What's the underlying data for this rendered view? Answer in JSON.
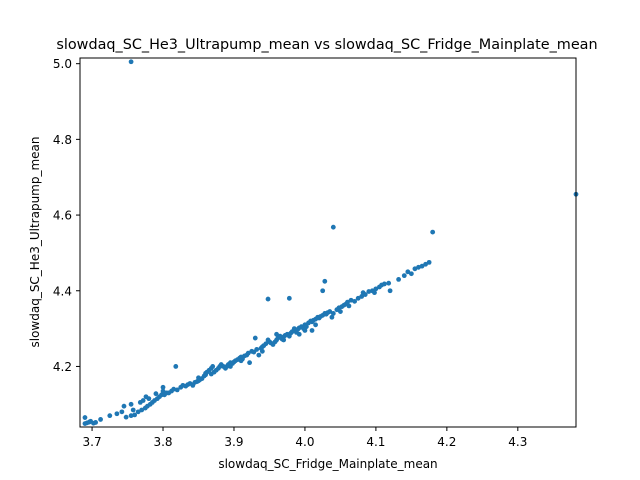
{
  "chart_data": {
    "type": "scatter",
    "title": "slowdaq_SC_He3_Ultrapump_mean vs slowdaq_SC_Fridge_Mainplate_mean",
    "xlabel": "slowdaq_SC_Fridge_Mainplate_mean",
    "ylabel": "slowdaq_SC_He3_Ultrapump_mean",
    "xlim": [
      3.683,
      4.382
    ],
    "ylim": [
      4.04,
      5.015
    ],
    "xticks": [
      3.7,
      3.8,
      3.9,
      4.0,
      4.1,
      4.2,
      4.3
    ],
    "xtick_labels": [
      "3.7",
      "3.8",
      "3.9",
      "4.0",
      "4.1",
      "4.2",
      "4.3"
    ],
    "yticks": [
      4.2,
      4.4,
      4.6,
      4.8,
      5.0
    ],
    "ytick_labels": [
      "4.2",
      "4.4",
      "4.6",
      "4.8",
      "5.0"
    ],
    "grid": false,
    "marker_color": "#1f77b4",
    "points": [
      [
        3.69,
        4.049
      ],
      [
        3.693,
        4.051
      ],
      [
        3.696,
        4.053
      ],
      [
        3.698,
        4.055
      ],
      [
        3.702,
        4.05
      ],
      [
        3.705,
        4.052
      ],
      [
        3.712,
        4.06
      ],
      [
        3.69,
        4.065
      ],
      [
        3.725,
        4.07
      ],
      [
        3.735,
        4.075
      ],
      [
        3.742,
        4.08
      ],
      [
        3.748,
        4.066
      ],
      [
        3.755,
        4.07
      ],
      [
        3.76,
        4.072
      ],
      [
        3.745,
        4.095
      ],
      [
        3.755,
        4.1
      ],
      [
        3.758,
        4.085
      ],
      [
        3.765,
        4.08
      ],
      [
        3.77,
        4.085
      ],
      [
        3.775,
        4.09
      ],
      [
        3.778,
        4.095
      ],
      [
        3.782,
        4.1
      ],
      [
        3.785,
        4.105
      ],
      [
        3.78,
        4.115
      ],
      [
        3.788,
        4.11
      ],
      [
        3.792,
        4.115
      ],
      [
        3.795,
        4.12
      ],
      [
        3.798,
        4.125
      ],
      [
        3.802,
        4.125
      ],
      [
        3.805,
        4.13
      ],
      [
        3.768,
        4.105
      ],
      [
        3.772,
        4.11
      ],
      [
        3.776,
        4.12
      ],
      [
        3.79,
        4.128
      ],
      [
        3.8,
        4.135
      ],
      [
        3.808,
        4.13
      ],
      [
        3.812,
        4.135
      ],
      [
        3.815,
        4.14
      ],
      [
        3.8,
        4.145
      ],
      [
        3.818,
        4.2
      ],
      [
        3.82,
        4.138
      ],
      [
        3.825,
        4.145
      ],
      [
        3.828,
        4.15
      ],
      [
        3.832,
        4.148
      ],
      [
        3.835,
        4.152
      ],
      [
        3.838,
        4.155
      ],
      [
        3.842,
        4.152
      ],
      [
        3.845,
        4.158
      ],
      [
        3.848,
        4.16
      ],
      [
        3.85,
        4.17
      ],
      [
        3.852,
        4.165
      ],
      [
        3.855,
        4.168
      ],
      [
        3.858,
        4.175
      ],
      [
        3.86,
        4.178
      ],
      [
        3.862,
        4.185
      ],
      [
        3.865,
        4.19
      ],
      [
        3.868,
        4.195
      ],
      [
        3.87,
        4.2
      ],
      [
        3.868,
        4.18
      ],
      [
        3.872,
        4.185
      ],
      [
        3.875,
        4.19
      ],
      [
        3.878,
        4.195
      ],
      [
        3.88,
        4.2
      ],
      [
        3.882,
        4.205
      ],
      [
        3.885,
        4.2
      ],
      [
        3.888,
        4.195
      ],
      [
        3.89,
        4.2
      ],
      [
        3.892,
        4.205
      ],
      [
        3.895,
        4.21
      ],
      [
        3.898,
        4.208
      ],
      [
        3.9,
        4.212
      ],
      [
        3.902,
        4.215
      ],
      [
        3.905,
        4.218
      ],
      [
        3.908,
        4.222
      ],
      [
        3.91,
        4.225
      ],
      [
        3.912,
        4.22
      ],
      [
        3.915,
        4.228
      ],
      [
        3.918,
        4.23
      ],
      [
        3.92,
        4.235
      ],
      [
        3.922,
        4.21
      ],
      [
        3.925,
        4.24
      ],
      [
        3.928,
        4.238
      ],
      [
        3.93,
        4.275
      ],
      [
        3.932,
        4.245
      ],
      [
        3.935,
        4.23
      ],
      [
        3.938,
        4.248
      ],
      [
        3.94,
        4.252
      ],
      [
        3.942,
        4.255
      ],
      [
        3.945,
        4.26
      ],
      [
        3.948,
        4.27
      ],
      [
        3.95,
        4.265
      ],
      [
        3.952,
        4.262
      ],
      [
        3.955,
        4.258
      ],
      [
        3.958,
        4.265
      ],
      [
        3.96,
        4.27
      ],
      [
        3.962,
        4.275
      ],
      [
        3.965,
        4.28
      ],
      [
        3.968,
        4.272
      ],
      [
        3.97,
        4.278
      ],
      [
        3.972,
        4.282
      ],
      [
        3.975,
        4.285
      ],
      [
        3.978,
        4.28
      ],
      [
        3.98,
        4.288
      ],
      [
        3.982,
        4.292
      ],
      [
        3.985,
        4.295
      ],
      [
        3.988,
        4.29
      ],
      [
        3.99,
        4.298
      ],
      [
        3.992,
        4.302
      ],
      [
        3.995,
        4.305
      ],
      [
        3.998,
        4.3
      ],
      [
        4.0,
        4.31
      ],
      [
        4.002,
        4.305
      ],
      [
        4.005,
        4.315
      ],
      [
        4.008,
        4.32
      ],
      [
        4.01,
        4.318
      ],
      [
        4.012,
        4.322
      ],
      [
        4.015,
        4.325
      ],
      [
        4.018,
        4.33
      ],
      [
        4.02,
        4.328
      ],
      [
        4.022,
        4.332
      ],
      [
        4.025,
        4.335
      ],
      [
        4.028,
        4.34
      ],
      [
        4.03,
        4.338
      ],
      [
        4.032,
        4.342
      ],
      [
        4.035,
        4.345
      ],
      [
        4.038,
        4.33
      ],
      [
        4.04,
        4.34
      ],
      [
        4.045,
        4.35
      ],
      [
        4.048,
        4.355
      ],
      [
        4.05,
        4.345
      ],
      [
        4.052,
        4.358
      ],
      [
        4.055,
        4.362
      ],
      [
        4.058,
        4.365
      ],
      [
        4.06,
        4.37
      ],
      [
        4.065,
        4.375
      ],
      [
        4.07,
        4.372
      ],
      [
        4.075,
        4.38
      ],
      [
        4.08,
        4.385
      ],
      [
        4.082,
        4.395
      ],
      [
        4.085,
        4.39
      ],
      [
        4.09,
        4.398
      ],
      [
        4.095,
        4.4
      ],
      [
        4.098,
        4.395
      ],
      [
        4.1,
        4.405
      ],
      [
        4.105,
        4.41
      ],
      [
        4.108,
        4.415
      ],
      [
        4.112,
        4.418
      ],
      [
        4.118,
        4.42
      ],
      [
        4.12,
        4.4
      ],
      [
        4.132,
        4.43
      ],
      [
        4.14,
        4.44
      ],
      [
        4.145,
        4.45
      ],
      [
        4.15,
        4.445
      ],
      [
        4.155,
        4.458
      ],
      [
        4.16,
        4.462
      ],
      [
        4.165,
        4.465
      ],
      [
        4.17,
        4.47
      ],
      [
        4.175,
        4.475
      ],
      [
        4.18,
        4.555
      ],
      [
        4.04,
        4.568
      ],
      [
        3.948,
        4.378
      ],
      [
        3.978,
        4.38
      ],
      [
        4.028,
        4.425
      ],
      [
        4.025,
        4.4
      ],
      [
        4.0,
        4.295
      ],
      [
        4.01,
        4.295
      ],
      [
        3.992,
        4.285
      ],
      [
        3.97,
        4.27
      ],
      [
        3.755,
        5.005
      ],
      [
        4.382,
        4.655
      ],
      [
        3.842,
        4.15
      ],
      [
        3.85,
        4.162
      ],
      [
        3.86,
        4.182
      ],
      [
        3.895,
        4.2
      ],
      [
        3.91,
        4.215
      ],
      [
        3.94,
        4.24
      ],
      [
        3.96,
        4.285
      ],
      [
        3.985,
        4.3
      ],
      [
        4.015,
        4.31
      ],
      [
        4.062,
        4.36
      ]
    ]
  }
}
